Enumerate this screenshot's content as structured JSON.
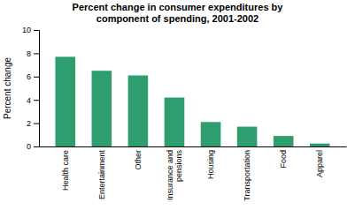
{
  "chart_data": {
    "type": "bar",
    "title": "Percent change in consumer expenditures by\ncomponent of spending, 2001-2002",
    "categories": [
      "Health care",
      "Entertainment",
      "Other",
      "Insurance and\npensions",
      "Housing",
      "Transportation",
      "Food",
      "Apparel"
    ],
    "values": [
      7.7,
      6.5,
      6.1,
      4.2,
      2.1,
      1.7,
      0.9,
      0.25
    ],
    "color": "#2e9e6e",
    "ylabel": "Percent change",
    "ylim": [
      0,
      10
    ],
    "yticks": [
      0,
      2,
      4,
      6,
      8,
      10
    ],
    "grid": false
  }
}
